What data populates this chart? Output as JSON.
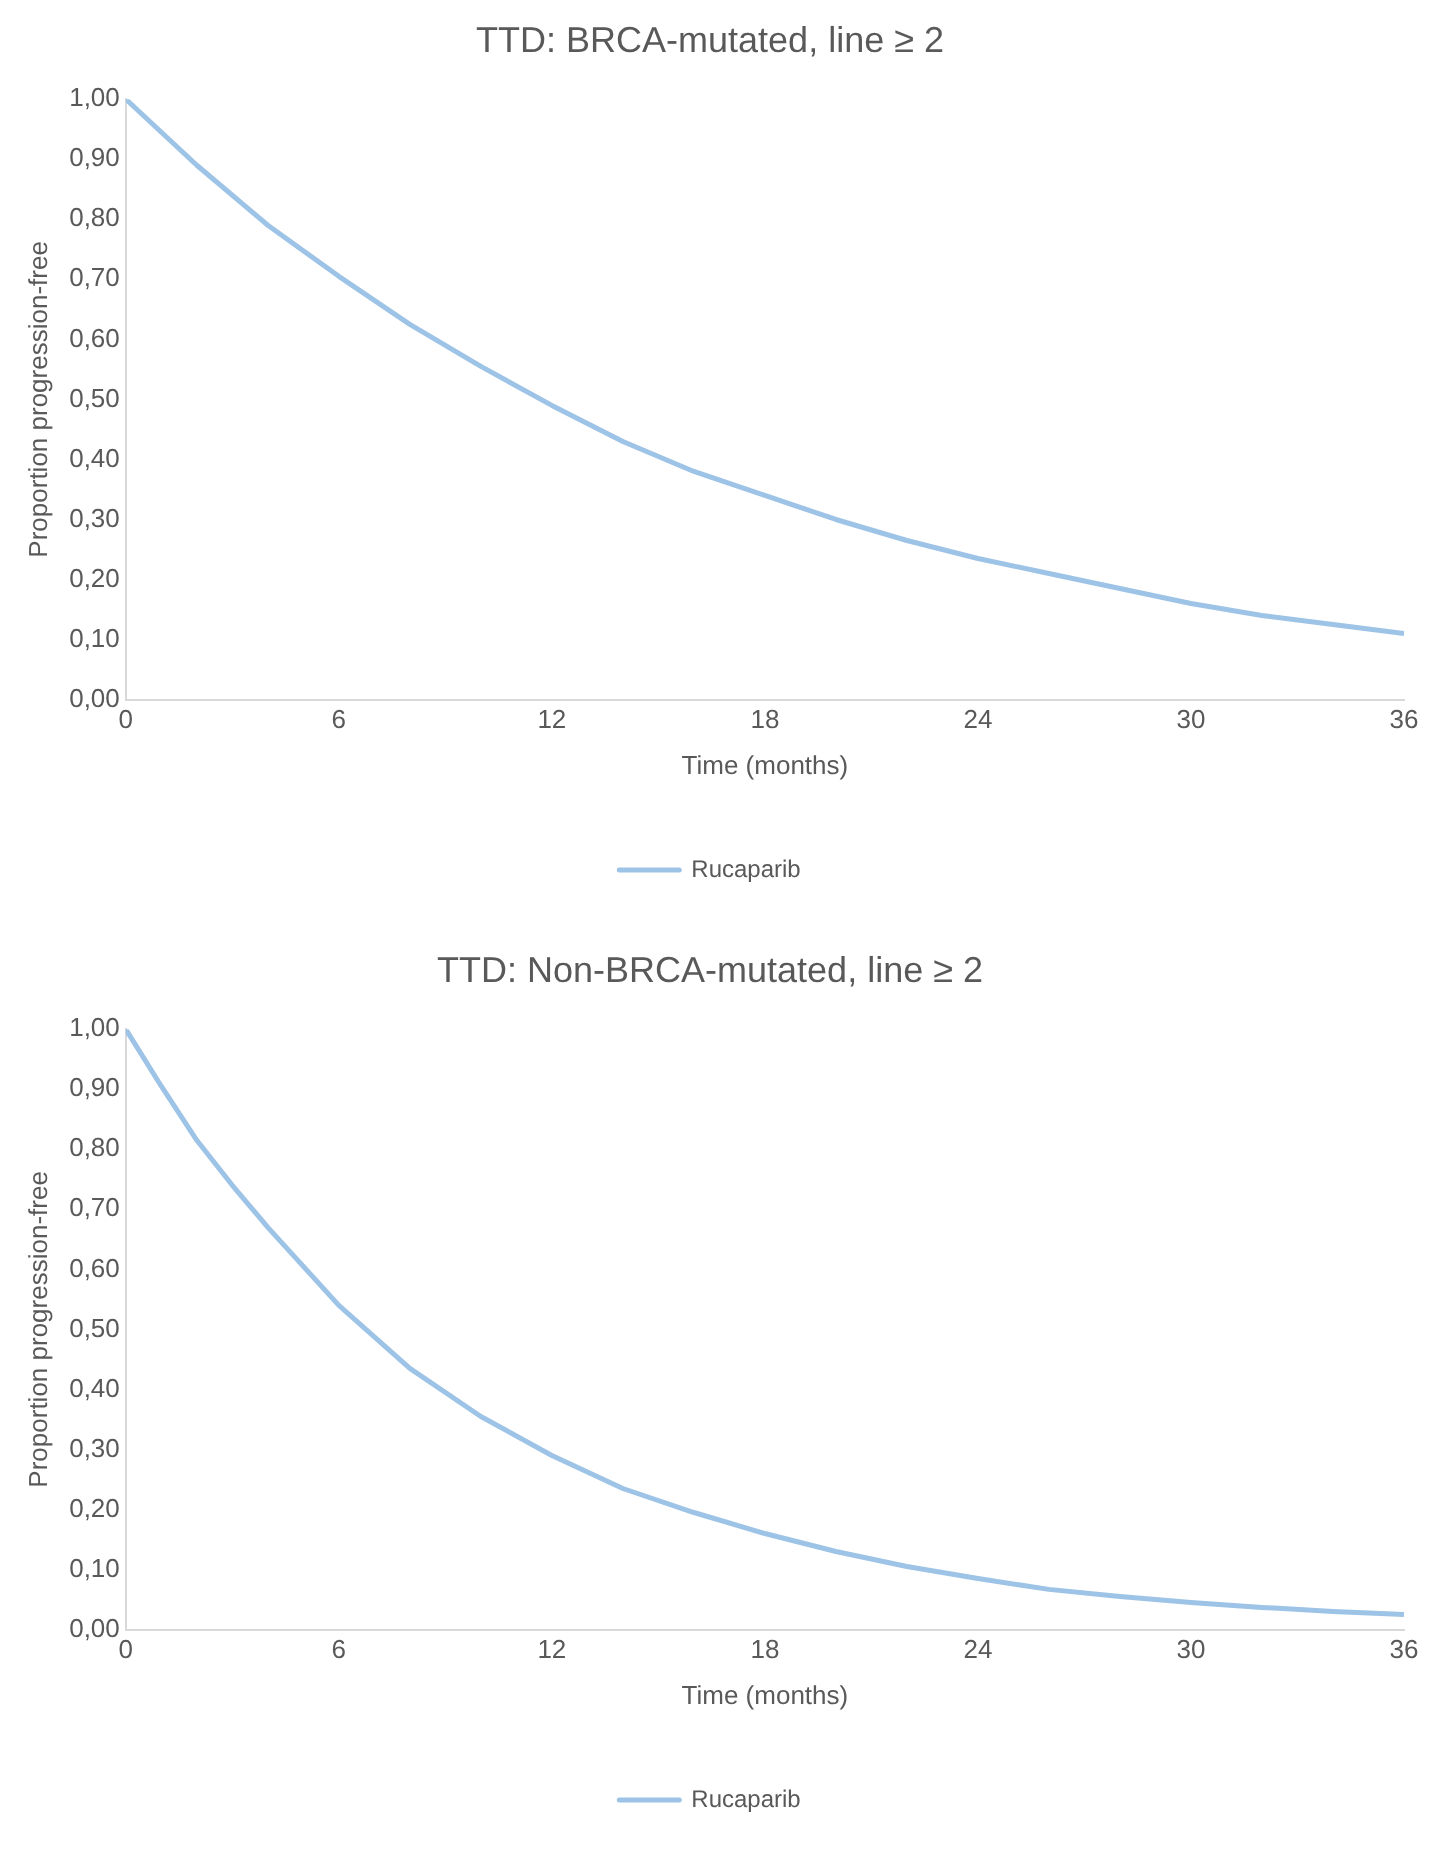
{
  "chart_data": [
    {
      "type": "line",
      "title": "TTD: BRCA-mutated, line ≥ 2",
      "xlabel": "Time (months)",
      "ylabel": "Proportion progression-free",
      "x": [
        0,
        2,
        4,
        6,
        8,
        10,
        12,
        14,
        16,
        18,
        20,
        22,
        24,
        26,
        28,
        30,
        32,
        34,
        36
      ],
      "series": [
        {
          "name": "Rucaparib",
          "color": "#9dc3e6",
          "values": [
            1.0,
            0.89,
            0.79,
            0.705,
            0.625,
            0.555,
            0.49,
            0.43,
            0.38,
            0.34,
            0.3,
            0.265,
            0.235,
            0.21,
            0.185,
            0.16,
            0.14,
            0.125,
            0.11
          ]
        }
      ],
      "xlim": [
        0,
        36
      ],
      "xticks": [
        0,
        6,
        12,
        18,
        24,
        30,
        36
      ],
      "ylim": [
        0,
        1
      ],
      "yticks": [
        {
          "value": 0,
          "label": "0,00"
        },
        {
          "value": 0.1,
          "label": "0,10"
        },
        {
          "value": 0.2,
          "label": "0,20"
        },
        {
          "value": 0.3,
          "label": "0,30"
        },
        {
          "value": 0.4,
          "label": "0,40"
        },
        {
          "value": 0.5,
          "label": "0,50"
        },
        {
          "value": 0.6,
          "label": "0,60"
        },
        {
          "value": 0.7,
          "label": "0,70"
        },
        {
          "value": 0.8,
          "label": "0,80"
        },
        {
          "value": 0.9,
          "label": "0,90"
        },
        {
          "value": 1,
          "label": "1,00"
        }
      ],
      "grid": false,
      "legend": "bottom",
      "marker": "none",
      "line_style": "solid"
    },
    {
      "type": "line",
      "title": "TTD: Non-BRCA-mutated, line ≥ 2",
      "xlabel": "Time (months)",
      "ylabel": "Proportion progression-free",
      "x": [
        0,
        1,
        2,
        3,
        4,
        6,
        8,
        10,
        12,
        14,
        16,
        18,
        20,
        22,
        24,
        26,
        28,
        30,
        32,
        34,
        36
      ],
      "series": [
        {
          "name": "Rucaparib",
          "color": "#9dc3e6",
          "values": [
            1.0,
            0.905,
            0.815,
            0.74,
            0.67,
            0.54,
            0.435,
            0.355,
            0.29,
            0.235,
            0.195,
            0.16,
            0.13,
            0.105,
            0.085,
            0.067,
            0.055,
            0.045,
            0.037,
            0.03,
            0.025
          ]
        }
      ],
      "xlim": [
        0,
        36
      ],
      "xticks": [
        0,
        6,
        12,
        18,
        24,
        30,
        36
      ],
      "ylim": [
        0,
        1
      ],
      "yticks": [
        {
          "value": 0,
          "label": "0,00"
        },
        {
          "value": 0.1,
          "label": "0,10"
        },
        {
          "value": 0.2,
          "label": "0,20"
        },
        {
          "value": 0.3,
          "label": "0,30"
        },
        {
          "value": 0.4,
          "label": "0,40"
        },
        {
          "value": 0.5,
          "label": "0,50"
        },
        {
          "value": 0.6,
          "label": "0,60"
        },
        {
          "value": 0.7,
          "label": "0,70"
        },
        {
          "value": 0.8,
          "label": "0,80"
        },
        {
          "value": 0.9,
          "label": "0,90"
        },
        {
          "value": 1,
          "label": "1,00"
        }
      ],
      "grid": false,
      "legend": "bottom",
      "marker": "none",
      "line_style": "solid"
    }
  ]
}
